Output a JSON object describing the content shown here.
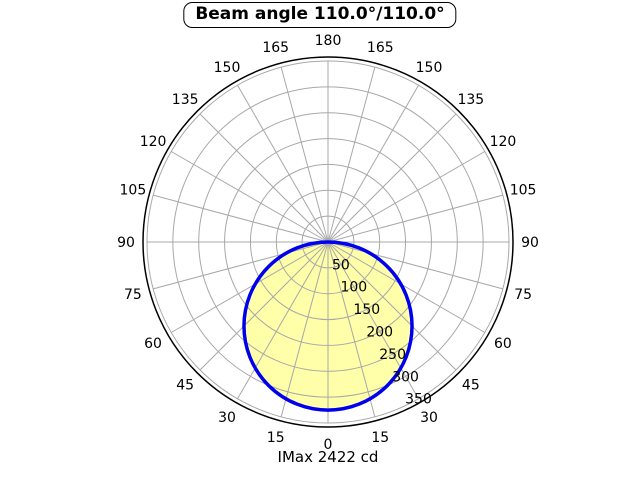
{
  "title": "Beam angle 110.0°/110.0°",
  "footer": "IMax 2422 cd",
  "chart_data": {
    "type": "polar-photometric",
    "title": "Beam angle 110.0°/110.0°",
    "beam_angle_c0": 110.0,
    "beam_angle_c90": 110.0,
    "imax_cd": 2422,
    "imax_label": "IMax 2422 cd",
    "angular_ticks_deg": [
      0,
      15,
      30,
      45,
      60,
      75,
      90,
      105,
      120,
      135,
      150,
      165,
      180
    ],
    "angular_mirrored": true,
    "angular_zero_position": "bottom",
    "radial_ticks": [
      50,
      100,
      150,
      200,
      250,
      300,
      350
    ],
    "radial_max": 350,
    "radial_label_angle_deg": 30,
    "grid": true,
    "curve": {
      "shape": "circle-through-origin",
      "max_value": 325,
      "angles_deg": [
        0,
        15,
        30,
        45,
        60,
        75,
        90
      ],
      "values": [
        325,
        314,
        281,
        230,
        163,
        84,
        0
      ]
    },
    "colors": {
      "beam_fill": "#FFFFAA",
      "beam_stroke": "#0000EE",
      "grid": "#A8A8A8",
      "outer_ring": "#000000",
      "text": "#000000"
    }
  }
}
